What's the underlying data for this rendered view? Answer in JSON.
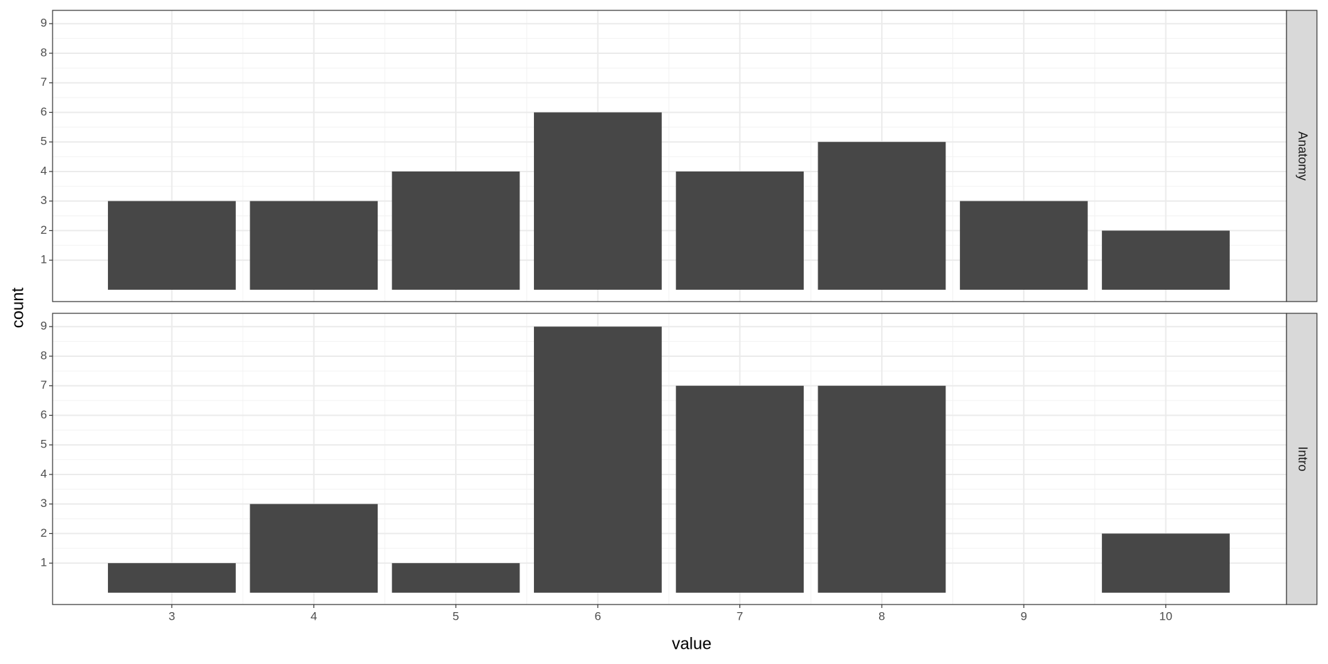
{
  "chart_data": {
    "type": "bar",
    "x_label": "value",
    "y_label": "count",
    "color": "#474747",
    "x": [
      3,
      4,
      5,
      6,
      7,
      8,
      9,
      10
    ],
    "xlim": [
      2.16,
      10.85
    ],
    "xticks": [
      3,
      4,
      5,
      6,
      7,
      8,
      9,
      10
    ],
    "ylim": [
      -0.4,
      9.45
    ],
    "yticks": [
      1,
      2,
      3,
      4,
      5,
      6,
      7,
      8,
      9
    ],
    "grid": true,
    "bar_width": 0.9,
    "facets": [
      {
        "label": "Anatomy",
        "values": [
          3,
          3,
          4,
          6,
          4,
          5,
          3,
          2
        ]
      },
      {
        "label": "Intro",
        "values": [
          1,
          3,
          1,
          9,
          7,
          7,
          0,
          2
        ]
      }
    ]
  }
}
